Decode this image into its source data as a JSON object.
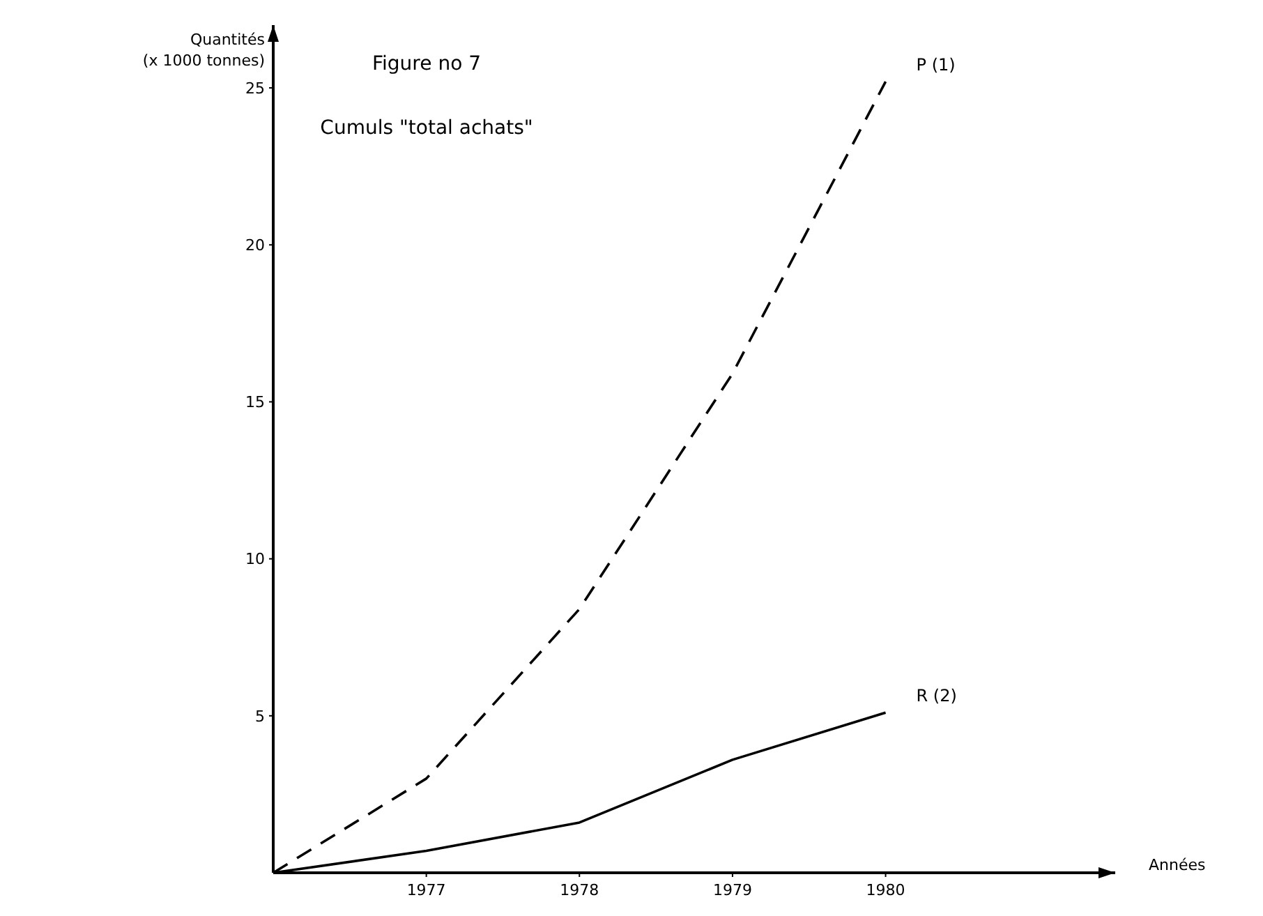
{
  "chart_data": {
    "type": "line",
    "title": "Figure no 7",
    "subtitle": "Cumuls \"total achats\"",
    "xlabel": "Années",
    "ylabel": "Quantités\n(x 1000 tonnes)",
    "x": [
      1976,
      1977,
      1978,
      1979,
      1980
    ],
    "series": [
      {
        "name": "P (1)",
        "color": "#000000",
        "line_style": "dashed",
        "values": [
          0,
          3,
          8.4,
          15.9,
          25.2
        ]
      },
      {
        "name": "R (2)",
        "color": "#000000",
        "line_style": "solid",
        "values": [
          0,
          0.7,
          1.6,
          3.6,
          5.1
        ]
      }
    ],
    "xlim": [
      1976,
      1981.5
    ],
    "ylim": [
      0,
      27
    ],
    "xticks": [
      1977,
      1978,
      1979,
      1980
    ],
    "yticks": [
      5,
      10,
      15,
      20,
      25
    ],
    "grid": false,
    "marker": "none"
  }
}
